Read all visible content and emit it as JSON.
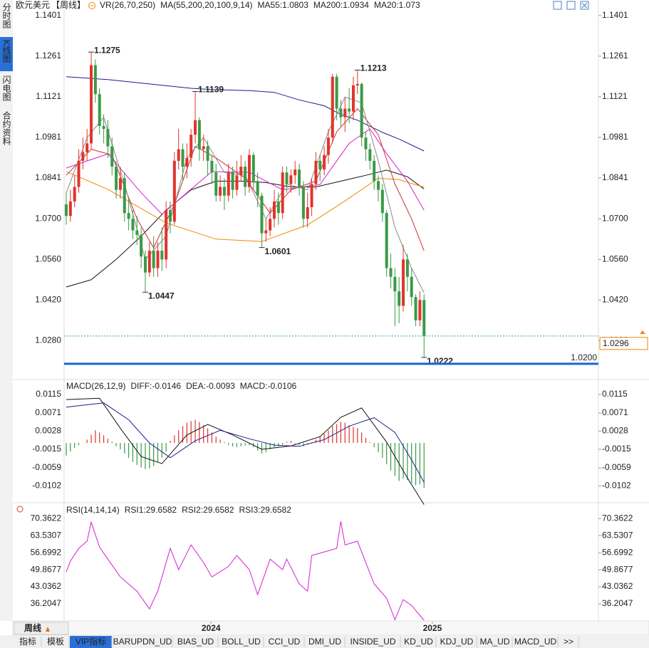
{
  "sidebar": [
    "分时图",
    "K线图",
    "闪电图",
    "合约资料"
  ],
  "sidebar_active": 1,
  "period_button": "周线",
  "bottom_tabs": [
    "指标",
    "模板",
    "VIP指标",
    "BARUPDN_UD",
    "BIAS_UD",
    "BOLL_UD",
    "CCI_UD",
    "DMI_UD",
    "INSIDE_UD",
    "KD_UD",
    "KDJ_UD",
    "MA_UD",
    "MACD_UD",
    ">>"
  ],
  "bottom_active": 2,
  "chart_data": [
    {
      "type": "candlestick",
      "symbol": "欧元美元",
      "period": "【周线】",
      "legend": [
        {
          "text": "VR(26,70,250)",
          "color": "#222"
        },
        {
          "text": "MA(55,200,20,100,9,14)",
          "color": "#222"
        },
        {
          "text": "MA55:1.0803",
          "color": "#222"
        },
        {
          "text": "MA200:1.0934",
          "color": "#1c1c8c"
        },
        {
          "text": "MA20:1.073",
          "color": "#d61fd0"
        }
      ],
      "up_color": "#e0342c",
      "down_color": "#3a9a48",
      "candles": [
        [
          1.075,
          1.079,
          1.068,
          1.071
        ],
        [
          1.071,
          1.08,
          1.069,
          1.076
        ],
        [
          1.076,
          1.085,
          1.074,
          1.081
        ],
        [
          1.081,
          1.094,
          1.079,
          1.09
        ],
        [
          1.09,
          1.098,
          1.087,
          1.093
        ],
        [
          1.093,
          1.101,
          1.09,
          1.096
        ],
        [
          1.096,
          1.1275,
          1.094,
          1.123
        ],
        [
          1.123,
          1.125,
          1.11,
          1.113
        ],
        [
          1.113,
          1.115,
          1.099,
          1.102
        ],
        [
          1.102,
          1.106,
          1.096,
          1.101
        ],
        [
          1.101,
          1.104,
          1.091,
          1.095
        ],
        [
          1.095,
          1.098,
          1.085,
          1.088
        ],
        [
          1.088,
          1.09,
          1.077,
          1.08
        ],
        [
          1.08,
          1.088,
          1.077,
          1.084
        ],
        [
          1.084,
          1.086,
          1.069,
          1.072
        ],
        [
          1.072,
          1.077,
          1.066,
          1.07
        ],
        [
          1.07,
          1.073,
          1.063,
          1.066
        ],
        [
          1.066,
          1.071,
          1.061,
          1.0645
        ],
        [
          1.0645,
          1.067,
          1.053,
          1.057
        ],
        [
          1.057,
          1.059,
          1.0447,
          1.0515
        ],
        [
          1.0515,
          1.062,
          1.05,
          1.059
        ],
        [
          1.059,
          1.064,
          1.05,
          1.053
        ],
        [
          1.053,
          1.062,
          1.05,
          1.059
        ],
        [
          1.059,
          1.067,
          1.052,
          1.056
        ],
        [
          1.056,
          1.076,
          1.053,
          1.073
        ],
        [
          1.073,
          1.076,
          1.065,
          1.069
        ],
        [
          1.069,
          1.093,
          1.068,
          1.09
        ],
        [
          1.09,
          1.101,
          1.087,
          1.094
        ],
        [
          1.094,
          1.096,
          1.083,
          1.088
        ],
        [
          1.088,
          1.096,
          1.084,
          1.091
        ],
        [
          1.091,
          1.101,
          1.088,
          1.099
        ],
        [
          1.099,
          1.1139,
          1.096,
          1.104
        ],
        [
          1.104,
          1.105,
          1.09,
          1.094
        ],
        [
          1.094,
          1.099,
          1.09,
          1.095
        ],
        [
          1.095,
          1.097,
          1.085,
          1.09
        ],
        [
          1.09,
          1.092,
          1.082,
          1.086
        ],
        [
          1.086,
          1.089,
          1.076,
          1.078
        ],
        [
          1.078,
          1.085,
          1.076,
          1.081
        ],
        [
          1.081,
          1.084,
          1.073,
          1.078
        ],
        [
          1.078,
          1.089,
          1.076,
          1.086
        ],
        [
          1.086,
          1.088,
          1.077,
          1.08
        ],
        [
          1.08,
          1.09,
          1.078,
          1.085
        ],
        [
          1.085,
          1.092,
          1.083,
          1.088
        ],
        [
          1.088,
          1.09,
          1.078,
          1.081
        ],
        [
          1.081,
          1.094,
          1.079,
          1.092
        ],
        [
          1.092,
          1.093,
          1.08,
          1.083
        ],
        [
          1.083,
          1.086,
          1.074,
          1.078
        ],
        [
          1.078,
          1.079,
          1.0601,
          1.065
        ],
        [
          1.065,
          1.07,
          1.062,
          1.066
        ],
        [
          1.066,
          1.074,
          1.064,
          1.07
        ],
        [
          1.07,
          1.08,
          1.067,
          1.076
        ],
        [
          1.076,
          1.079,
          1.068,
          1.072
        ],
        [
          1.072,
          1.088,
          1.07,
          1.086
        ],
        [
          1.086,
          1.088,
          1.079,
          1.082
        ],
        [
          1.082,
          1.087,
          1.079,
          1.085
        ],
        [
          1.085,
          1.09,
          1.082,
          1.087
        ],
        [
          1.087,
          1.089,
          1.078,
          1.081
        ],
        [
          1.081,
          1.083,
          1.067,
          1.07
        ],
        [
          1.07,
          1.079,
          1.067,
          1.074
        ],
        [
          1.074,
          1.084,
          1.071,
          1.082
        ],
        [
          1.082,
          1.093,
          1.08,
          1.09
        ],
        [
          1.09,
          1.092,
          1.083,
          1.087
        ],
        [
          1.087,
          1.095,
          1.085,
          1.092
        ],
        [
          1.092,
          1.101,
          1.089,
          1.098
        ],
        [
          1.098,
          1.12,
          1.096,
          1.119
        ],
        [
          1.119,
          1.12,
          1.104,
          1.108
        ],
        [
          1.108,
          1.111,
          1.102,
          1.105
        ],
        [
          1.105,
          1.112,
          1.1,
          1.108
        ],
        [
          1.108,
          1.115,
          1.103,
          1.107
        ],
        [
          1.107,
          1.119,
          1.104,
          1.116
        ],
        [
          1.116,
          1.1213,
          1.113,
          1.1165
        ],
        [
          1.1165,
          1.117,
          1.095,
          1.098
        ],
        [
          1.098,
          1.1,
          1.09,
          1.094
        ],
        [
          1.094,
          1.096,
          1.087,
          1.09
        ],
        [
          1.09,
          1.092,
          1.08,
          1.083
        ],
        [
          1.083,
          1.085,
          1.076,
          1.08
        ],
        [
          1.08,
          1.082,
          1.069,
          1.072
        ],
        [
          1.072,
          1.073,
          1.05,
          1.053
        ],
        [
          1.053,
          1.058,
          1.046,
          1.05
        ],
        [
          1.05,
          1.053,
          1.033,
          1.045
        ],
        [
          1.045,
          1.05,
          1.034,
          1.04
        ],
        [
          1.04,
          1.061,
          1.038,
          1.056
        ],
        [
          1.056,
          1.058,
          1.045,
          1.05
        ],
        [
          1.05,
          1.053,
          1.04,
          1.043
        ],
        [
          1.043,
          1.044,
          1.033,
          1.035
        ],
        [
          1.035,
          1.045,
          1.033,
          1.042
        ],
        [
          1.042,
          1.044,
          1.0222,
          1.0296
        ]
      ],
      "lines": [
        {
          "color": "#1c1c8c",
          "x": [
            0,
            10,
            20,
            30,
            35,
            44,
            50,
            56,
            62,
            66,
            70,
            76,
            80,
            86
          ],
          "values": [
            1.119,
            1.118,
            1.1165,
            1.115,
            1.1146,
            1.1142,
            1.1136,
            1.111,
            1.109,
            1.106,
            1.104,
            1.0998,
            1.0975,
            1.0934
          ]
        },
        {
          "color": "#111111",
          "x": [
            0,
            6,
            12,
            18,
            24,
            30,
            36,
            42,
            48,
            54,
            60,
            66,
            72,
            77,
            82,
            86
          ],
          "values": [
            1.0465,
            1.049,
            1.056,
            1.064,
            1.073,
            1.08,
            1.083,
            1.083,
            1.0825,
            1.081,
            1.081,
            1.083,
            1.085,
            1.0868,
            1.0845,
            1.0803
          ]
        },
        {
          "color": "#f08a00",
          "x": [
            0,
            10,
            24,
            36,
            47,
            58,
            66,
            75,
            80,
            86
          ],
          "values": [
            1.0863,
            1.0802,
            1.0686,
            1.063,
            1.0622,
            1.0679,
            1.0752,
            1.084,
            1.0835,
            1.0809
          ]
        },
        {
          "color": "#d61fd0",
          "x": [
            0,
            10,
            18,
            23,
            29,
            35,
            44,
            52,
            61,
            68,
            73,
            77,
            82,
            86
          ],
          "values": [
            1.0875,
            1.0924,
            1.079,
            1.0716,
            1.079,
            1.0863,
            1.086,
            1.08,
            1.0818,
            1.096,
            1.101,
            1.0925,
            1.083,
            1.073
          ]
        },
        {
          "color": "#c83232",
          "x": [
            0,
            6,
            11,
            17,
            21,
            26,
            31,
            36,
            43,
            49,
            54,
            60,
            65,
            70,
            75,
            79,
            83,
            86
          ],
          "values": [
            1.085,
            1.094,
            1.092,
            1.07,
            1.06,
            1.075,
            1.095,
            1.091,
            1.084,
            1.072,
            1.08,
            1.083,
            1.1,
            1.108,
            1.099,
            1.082,
            1.07,
            1.059
          ]
        },
        {
          "color": "#8a8a8a",
          "x": [
            0,
            5,
            9,
            14,
            19,
            24,
            29,
            33,
            38,
            43,
            48,
            53,
            58,
            63,
            67,
            71,
            75,
            79,
            83,
            86
          ],
          "values": [
            1.079,
            1.098,
            1.105,
            1.082,
            1.056,
            1.064,
            1.091,
            1.098,
            1.086,
            1.085,
            1.07,
            1.082,
            1.08,
            1.1,
            1.112,
            1.11,
            1.09,
            1.067,
            1.053,
            1.0445
          ]
        }
      ],
      "annotations": [
        {
          "value": 1.1275,
          "at": 6,
          "color": "#d63a3a"
        },
        {
          "value": 1.1139,
          "at": 31,
          "color": "#d63a3a"
        },
        {
          "value": 1.1213,
          "at": 70,
          "color": "#d63a3a"
        },
        {
          "value": 1.0447,
          "at": 19,
          "color": "#3a9a48"
        },
        {
          "value": 1.0601,
          "at": 47,
          "color": "#3a9a48"
        },
        {
          "value": 1.0222,
          "at": 86,
          "color": "#3a9a48"
        }
      ],
      "hline": {
        "value": 1.02,
        "label": "1.0200",
        "color": "#1565d8"
      },
      "last_color": "#f08a00",
      "ylim": [
        1.019,
        1.143
      ],
      "yticks": [
        1.1401,
        1.1261,
        1.1121,
        1.0981,
        1.0841,
        {
          "value": 1.07,
          "label": "1.0700"
        },
        {
          "value": 1.056,
          "label": "1.0560"
        },
        {
          "value": 1.042,
          "label": "1.0420"
        },
        {
          "value": 1.028,
          "label": "1.0280"
        }
      ]
    },
    {
      "type": "macd",
      "legend": [
        {
          "text": "MACD(26,12,9)",
          "color": "#222"
        },
        {
          "text": "DIFF:-0.0146",
          "color": "#222"
        },
        {
          "text": "DEA:-0.0093",
          "color": "#1c1c8c"
        },
        {
          "text": "MACD:-0.0106",
          "color": "#d61fd0"
        }
      ],
      "up_color": "#e0342c",
      "down_color": "#3a9a48",
      "histogram": [
        -0.003,
        -0.002,
        -0.0012,
        -0.0005,
        0.0,
        0.0008,
        0.002,
        0.003,
        0.0025,
        0.0018,
        0.001,
        0.0003,
        -0.0008,
        -0.0015,
        -0.0025,
        -0.0035,
        -0.0045,
        -0.0052,
        -0.0058,
        -0.0062,
        -0.006,
        -0.0055,
        -0.0045,
        -0.0035,
        -0.002,
        0.0005,
        0.0018,
        0.003,
        0.004,
        0.0048,
        0.0052,
        0.0055,
        0.005,
        0.0042,
        0.0035,
        0.0025,
        0.0015,
        0.0008,
        0.0002,
        -0.0005,
        -0.0008,
        -0.001,
        -0.0008,
        -0.0006,
        -0.0005,
        -0.001,
        -0.0018,
        -0.0025,
        -0.0022,
        -0.0015,
        -0.001,
        -0.0008,
        -0.0004,
        0.0003,
        0.0005,
        -0.0002,
        -0.0005,
        -0.0008,
        -0.0004,
        0.0002,
        0.0008,
        0.0015,
        0.0022,
        0.003,
        0.004,
        0.0045,
        0.005,
        0.0048,
        0.0042,
        0.0038,
        0.0035,
        0.0025,
        0.0012,
        0.0002,
        -0.001,
        -0.0022,
        -0.0035,
        -0.005,
        -0.0065,
        -0.0078,
        -0.009,
        -0.0085,
        -0.0088,
        -0.0095,
        -0.01,
        -0.0098,
        -0.0106
      ],
      "lines": [
        {
          "color": "#111111",
          "x": [
            0,
            8,
            13,
            18,
            23,
            29,
            34,
            40,
            47,
            54,
            61,
            66,
            71,
            77,
            82,
            86
          ],
          "values": [
            0.0103,
            0.0106,
            0.0035,
            -0.0032,
            -0.0049,
            0.0019,
            0.0044,
            0.0019,
            -0.0015,
            -0.0007,
            0.0015,
            0.0061,
            0.0083,
            0.0002,
            -0.0083,
            -0.0146
          ]
        },
        {
          "color": "#1c1c8c",
          "x": [
            0,
            9,
            15,
            20,
            25,
            31,
            37,
            44,
            50,
            56,
            62,
            68,
            74,
            79,
            83,
            86
          ],
          "values": [
            0.0085,
            0.0095,
            0.0055,
            0.0,
            -0.0035,
            0.0005,
            0.003,
            0.001,
            -0.0005,
            -0.0008,
            0.0008,
            0.004,
            0.006,
            0.0025,
            -0.004,
            -0.0093
          ]
        }
      ],
      "ylim": [
        -0.0145,
        0.0147
      ],
      "yticks": [
        0.0115,
        0.0071,
        0.0028,
        -0.0015,
        -0.0059,
        -0.0102
      ]
    },
    {
      "type": "line",
      "legend": [
        {
          "text": "RSI(14,14,14)",
          "color": "#222"
        },
        {
          "text": "RSI1:29.6582",
          "color": "#222"
        },
        {
          "text": "RSI2:29.6582",
          "color": "#1c1c8c"
        },
        {
          "text": "RSI3:29.6582",
          "color": "#d61fd0"
        }
      ],
      "series": [
        {
          "color": "#d61fd0",
          "x": [
            0,
            1,
            3,
            5,
            6,
            8,
            10,
            13,
            17,
            20,
            22,
            25,
            27,
            30,
            33,
            35,
            39,
            41,
            44,
            46,
            49,
            52,
            53,
            56,
            58,
            59,
            62,
            65,
            66,
            67,
            70,
            71,
            74,
            77,
            79,
            81,
            83,
            86
          ],
          "values": [
            49.0,
            53.3,
            58.4,
            61.3,
            68.9,
            58.9,
            54.1,
            47.0,
            41.3,
            34.2,
            41.3,
            58.4,
            49.9,
            59.8,
            52.7,
            47.0,
            51.2,
            55.6,
            49.9,
            39.9,
            54.1,
            49.9,
            54.1,
            44.2,
            41.3,
            55.6,
            57.0,
            58.4,
            69.2,
            59.8,
            61.3,
            57.0,
            44.2,
            38.5,
            29.9,
            37.9,
            35.6,
            29.6582
          ]
        }
      ],
      "ylim": [
        29.1,
        76.1
      ],
      "yticks": [
        70.3622,
        63.5307,
        56.6992,
        49.8677,
        43.0362,
        36.2047
      ],
      "xticks": [
        {
          "value": 34.8,
          "label": "2024"
        },
        {
          "value": 88,
          "label": "2025"
        }
      ]
    }
  ]
}
